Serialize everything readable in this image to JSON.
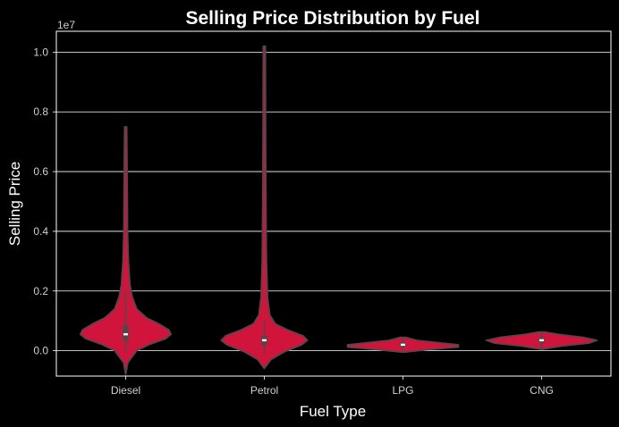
{
  "chart_data": {
    "type": "violin",
    "title": "Selling Price Distribution by Fuel",
    "xlabel": "Fuel Type",
    "ylabel": "Selling Price",
    "y_offset_label": "1e7",
    "ylim": [
      -0.085,
      1.07
    ],
    "yticks": [
      0.0,
      0.2,
      0.4,
      0.6,
      0.8,
      1.0
    ],
    "ytick_labels": [
      "0.0",
      "0.2",
      "0.4",
      "0.6",
      "0.8",
      "1.0"
    ],
    "grid": true,
    "colors": {
      "background": "#000000",
      "violin_fill": "#d0143c",
      "violin_edge": "#4a4a4a",
      "grid": "#ffffff",
      "median": "#ffffff"
    },
    "categories": [
      "Diesel",
      "Petrol",
      "LPG",
      "CNG"
    ],
    "violins": [
      {
        "category": "Diesel",
        "median": 0.055,
        "q1": 0.033,
        "q3": 0.085,
        "whisker_low": -0.005,
        "whisker_high": 0.2,
        "profile": [
          [
            -0.08,
            0.0
          ],
          [
            -0.04,
            0.04
          ],
          [
            0.0,
            0.2
          ],
          [
            0.02,
            0.42
          ],
          [
            0.04,
            0.72
          ],
          [
            0.055,
            0.82
          ],
          [
            0.07,
            0.78
          ],
          [
            0.09,
            0.6
          ],
          [
            0.11,
            0.38
          ],
          [
            0.14,
            0.2
          ],
          [
            0.18,
            0.12
          ],
          [
            0.22,
            0.08
          ],
          [
            0.3,
            0.05
          ],
          [
            0.4,
            0.035
          ],
          [
            0.55,
            0.03
          ],
          [
            0.65,
            0.025
          ],
          [
            0.75,
            0.02
          ]
        ]
      },
      {
        "category": "Petrol",
        "median": 0.035,
        "q1": 0.018,
        "q3": 0.05,
        "whisker_low": -0.01,
        "whisker_high": 0.1,
        "profile": [
          [
            -0.06,
            0.0
          ],
          [
            -0.03,
            0.12
          ],
          [
            -0.005,
            0.35
          ],
          [
            0.02,
            0.68
          ],
          [
            0.035,
            0.78
          ],
          [
            0.05,
            0.7
          ],
          [
            0.07,
            0.42
          ],
          [
            0.09,
            0.2
          ],
          [
            0.12,
            0.1
          ],
          [
            0.18,
            0.06
          ],
          [
            0.3,
            0.04
          ],
          [
            0.5,
            0.03
          ],
          [
            0.7,
            0.025
          ],
          [
            0.9,
            0.022
          ],
          [
            1.02,
            0.02
          ]
        ]
      },
      {
        "category": "LPG",
        "median": 0.02,
        "q1": 0.012,
        "q3": 0.028,
        "whisker_low": 0.0,
        "whisker_high": 0.04,
        "profile": [
          [
            -0.005,
            0.03
          ],
          [
            0.005,
            0.55
          ],
          [
            0.012,
            1.0
          ],
          [
            0.02,
            1.0
          ],
          [
            0.028,
            0.6
          ],
          [
            0.035,
            0.25
          ],
          [
            0.045,
            0.05
          ]
        ]
      },
      {
        "category": "CNG",
        "median": 0.035,
        "q1": 0.025,
        "q3": 0.045,
        "whisker_low": 0.005,
        "whisker_high": 0.06,
        "profile": [
          [
            0.005,
            0.02
          ],
          [
            0.015,
            0.35
          ],
          [
            0.025,
            0.85
          ],
          [
            0.035,
            1.0
          ],
          [
            0.045,
            0.75
          ],
          [
            0.055,
            0.3
          ],
          [
            0.063,
            0.05
          ]
        ]
      }
    ]
  }
}
